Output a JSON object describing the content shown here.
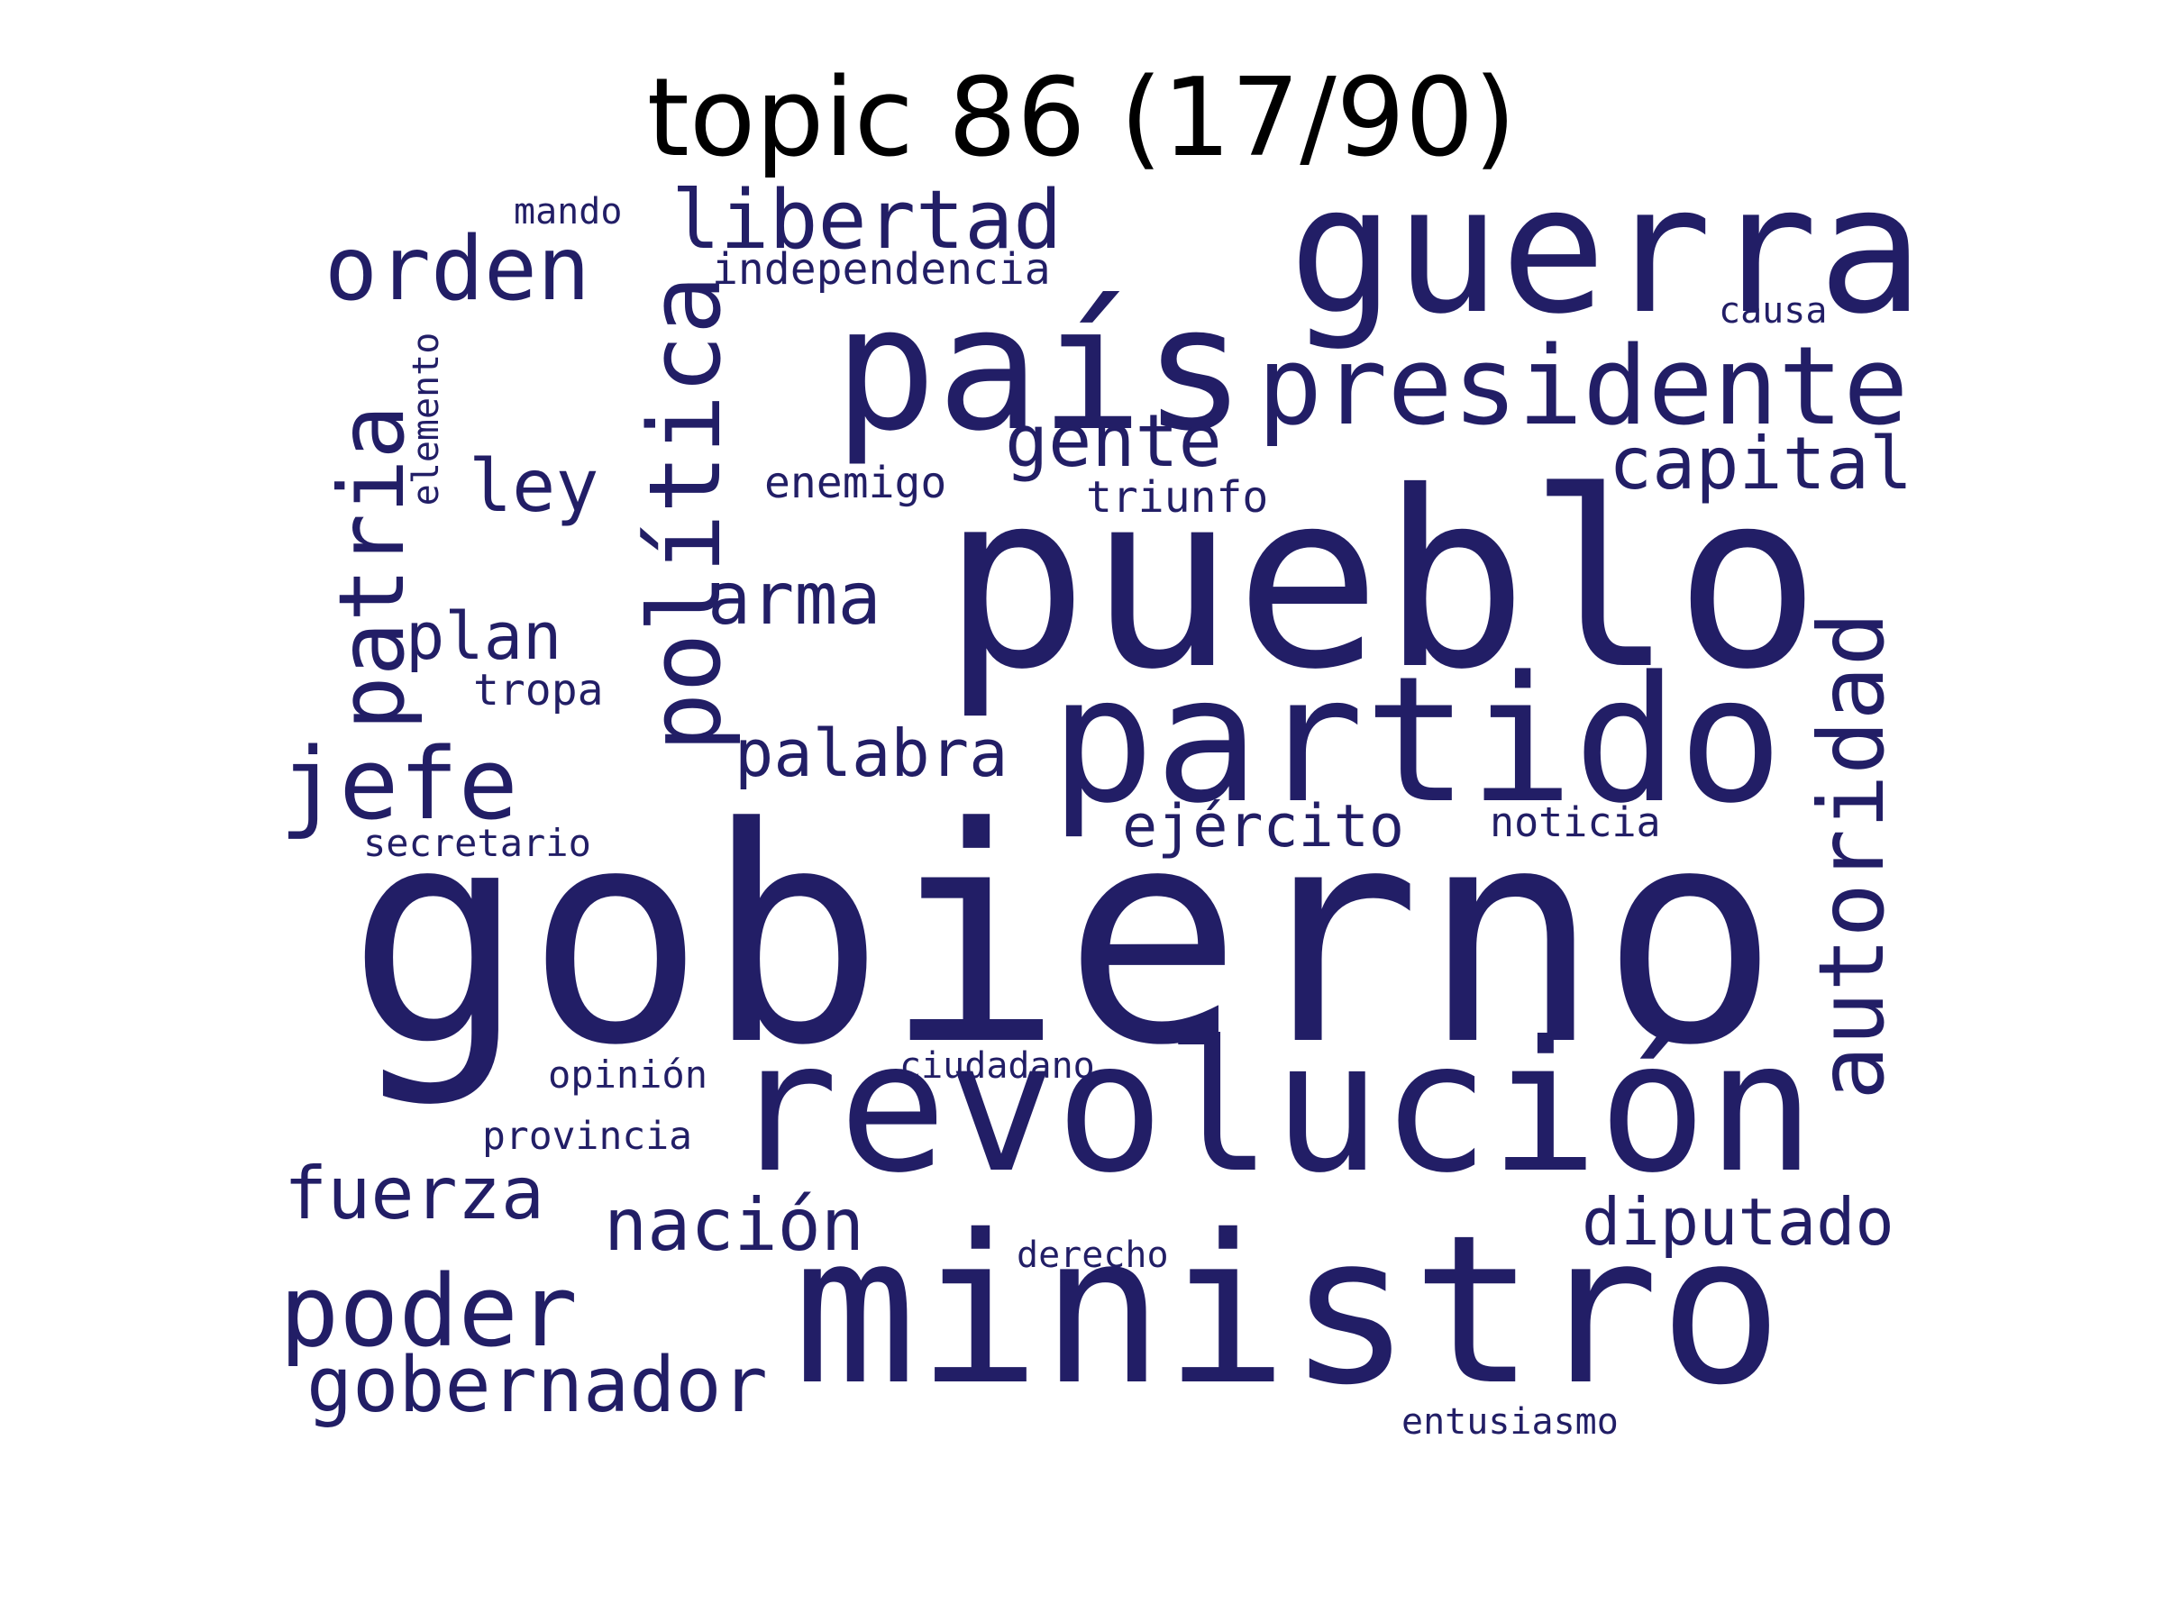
{
  "title": "topic 86 (17/90)",
  "word_color": "#221e66",
  "words": [
    {
      "text": "gobierno"
    },
    {
      "text": "pueblo"
    },
    {
      "text": "ministro"
    },
    {
      "text": "revolución"
    },
    {
      "text": "guerra"
    },
    {
      "text": "partido"
    },
    {
      "text": "país"
    },
    {
      "text": "presidente"
    },
    {
      "text": "política"
    },
    {
      "text": "autoridad"
    },
    {
      "text": "patria"
    },
    {
      "text": "poder"
    },
    {
      "text": "orden"
    },
    {
      "text": "jefe"
    },
    {
      "text": "libertad"
    },
    {
      "text": "gobernador"
    },
    {
      "text": "capital"
    },
    {
      "text": "gente"
    },
    {
      "text": "fuerza"
    },
    {
      "text": "nación"
    },
    {
      "text": "diputado"
    },
    {
      "text": "palabra"
    },
    {
      "text": "ley"
    },
    {
      "text": "arma"
    },
    {
      "text": "ejército"
    },
    {
      "text": "plan"
    },
    {
      "text": "independencia"
    },
    {
      "text": "triunfo"
    },
    {
      "text": "enemigo"
    },
    {
      "text": "tropa"
    },
    {
      "text": "mando"
    },
    {
      "text": "elemento"
    },
    {
      "text": "causa"
    },
    {
      "text": "secretario"
    },
    {
      "text": "noticia"
    },
    {
      "text": "opinión"
    },
    {
      "text": "ciudadano"
    },
    {
      "text": "provincia"
    },
    {
      "text": "derecho"
    },
    {
      "text": "entusiasmo"
    }
  ]
}
